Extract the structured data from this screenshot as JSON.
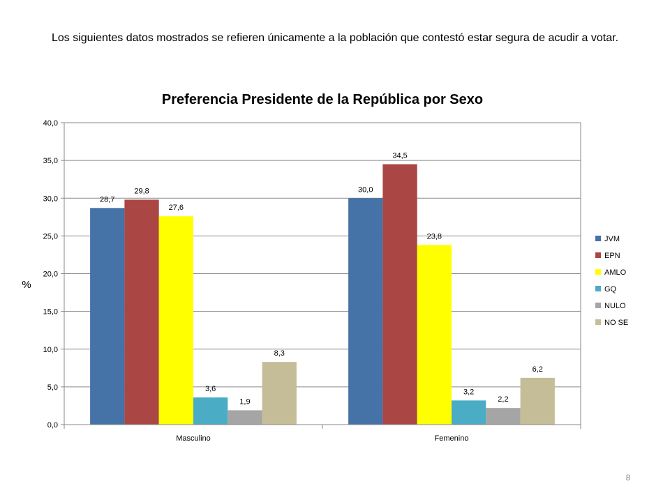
{
  "slide": {
    "intro_text": "Los siguientes datos mostrados se refieren únicamente a la población que contestó estar segura de acudir a votar.",
    "page_number": "8"
  },
  "chart_data": {
    "type": "bar",
    "title": "Preferencia Presidente de la República por Sexo",
    "xlabel": "",
    "ylabel": "%",
    "ylim": [
      0,
      40
    ],
    "yticks": [
      0,
      5,
      10,
      15,
      20,
      25,
      30,
      35,
      40
    ],
    "ytick_labels": [
      "0,0",
      "5,0",
      "10,0",
      "15,0",
      "20,0",
      "25,0",
      "30,0",
      "35,0",
      "40,0"
    ],
    "grid": true,
    "legend_position": "right",
    "categories": [
      "Masculino",
      "Femenino"
    ],
    "series": [
      {
        "name": "JVM",
        "color": "#4572A7",
        "values": [
          28.7,
          30.0
        ],
        "labels": [
          "28,7",
          "30,0"
        ]
      },
      {
        "name": "EPN",
        "color": "#AA4643",
        "values": [
          29.8,
          34.5
        ],
        "labels": [
          "29,8",
          "34,5"
        ]
      },
      {
        "name": "AMLO",
        "color": "#FFFF00",
        "values": [
          27.6,
          23.8
        ],
        "labels": [
          "27,6",
          "23,8"
        ]
      },
      {
        "name": "GQ",
        "color": "#4BACC6",
        "values": [
          3.6,
          3.2
        ],
        "labels": [
          "3,6",
          "3,2"
        ]
      },
      {
        "name": "NULO",
        "color": "#A5A5A5",
        "values": [
          1.9,
          2.2
        ],
        "labels": [
          "1,9",
          "2,2"
        ]
      },
      {
        "name": "NO SE",
        "color": "#C4BD97",
        "values": [
          8.3,
          6.2
        ],
        "labels": [
          "8,3",
          "6,2"
        ]
      }
    ]
  }
}
